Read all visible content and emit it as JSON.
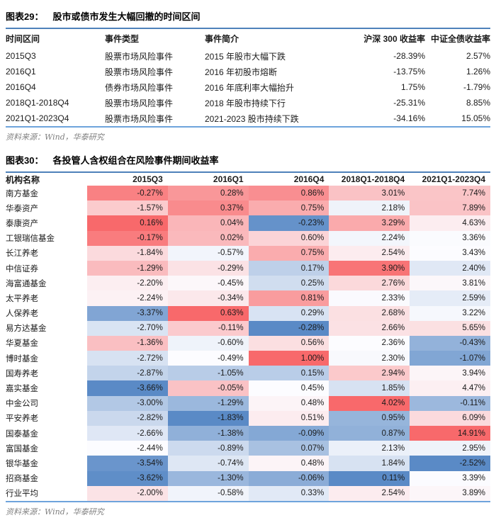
{
  "colors": {
    "heat_min": "#5A8AC6",
    "heat_mid": "#FCFCFF",
    "heat_max": "#F8696B",
    "title_rule": "#4E81BA",
    "bottom_rule": "#6EA4DC",
    "source_text": "#808080"
  },
  "figure29": {
    "label": "图表29：",
    "title": "股市或债市发生大幅回撤的时间区间",
    "columns": [
      "时间区间",
      "事件类型",
      "事件简介",
      "沪深 300 收益率",
      "中证全债收益率"
    ],
    "rows": [
      [
        "2015Q3",
        "股票市场风险事件",
        "2015 年股市大幅下跌",
        "-28.39%",
        "2.57%"
      ],
      [
        "2016Q1",
        "股票市场风险事件",
        "2016 年初股市熔断",
        "-13.75%",
        "1.26%"
      ],
      [
        "2016Q4",
        "债券市场风险事件",
        "2016 年底利率大幅抬升",
        "1.75%",
        "-1.79%"
      ],
      [
        "2018Q1-2018Q4",
        "股票市场风险事件",
        "2018 年股市持续下行",
        "-25.31%",
        "8.85%"
      ],
      [
        "2021Q1-2023Q4",
        "股票市场风险事件",
        "2021-2023 股市持续下跌",
        "-34.16%",
        "15.05%"
      ]
    ],
    "source": "资料来源：Wind，华泰研究"
  },
  "figure30": {
    "label": "图表30：",
    "title": "各投管人含权组合在风险事件期间收益率",
    "name_header": "机构名称",
    "period_headers": [
      "2015Q3",
      "2016Q1",
      "2016Q4",
      "2018Q1-2018Q4",
      "2021Q1-2023Q4"
    ],
    "rows": [
      {
        "name": "南方基金",
        "values": [
          -0.27,
          0.28,
          0.86,
          3.01,
          7.74
        ]
      },
      {
        "name": "华泰资产",
        "values": [
          -1.57,
          0.37,
          0.75,
          2.18,
          7.89
        ]
      },
      {
        "name": "泰康资产",
        "values": [
          0.16,
          0.04,
          -0.23,
          3.29,
          4.63
        ]
      },
      {
        "name": "工银瑞信基金",
        "values": [
          -0.17,
          0.02,
          0.6,
          2.24,
          3.36
        ]
      },
      {
        "name": "长江养老",
        "values": [
          -1.84,
          -0.57,
          0.75,
          2.54,
          3.43
        ]
      },
      {
        "name": "中信证券",
        "values": [
          -1.29,
          -0.29,
          0.17,
          3.9,
          2.4
        ]
      },
      {
        "name": "海富通基金",
        "values": [
          -2.2,
          -0.45,
          0.25,
          2.76,
          3.81
        ]
      },
      {
        "name": "太平养老",
        "values": [
          -2.24,
          -0.34,
          0.81,
          2.33,
          2.59
        ]
      },
      {
        "name": "人保养老",
        "values": [
          -3.37,
          0.63,
          0.29,
          2.68,
          3.22
        ]
      },
      {
        "name": "易方达基金",
        "values": [
          -2.7,
          -0.11,
          -0.28,
          2.66,
          5.65
        ]
      },
      {
        "name": "华夏基金",
        "values": [
          -1.36,
          -0.6,
          0.56,
          2.36,
          -0.43
        ]
      },
      {
        "name": "博时基金",
        "values": [
          -2.72,
          -0.49,
          1.0,
          2.3,
          -1.07
        ]
      },
      {
        "name": "国寿养老",
        "values": [
          -2.87,
          -1.05,
          0.15,
          2.94,
          3.94
        ]
      },
      {
        "name": "嘉实基金",
        "values": [
          -3.66,
          -0.05,
          0.45,
          1.85,
          4.47
        ]
      },
      {
        "name": "中金公司",
        "values": [
          -3.0,
          -1.29,
          0.48,
          4.02,
          -0.11
        ]
      },
      {
        "name": "平安养老",
        "values": [
          -2.82,
          -1.83,
          0.51,
          0.95,
          6.09
        ]
      },
      {
        "name": "国泰基金",
        "values": [
          -2.66,
          -1.38,
          -0.09,
          0.87,
          14.91
        ]
      },
      {
        "name": "富国基金",
        "values": [
          -2.44,
          -0.89,
          0.07,
          2.13,
          2.95
        ]
      },
      {
        "name": "银华基金",
        "values": [
          -3.54,
          -0.74,
          0.48,
          1.84,
          -2.52
        ]
      },
      {
        "name": "招商基金",
        "values": [
          -3.62,
          -1.3,
          -0.06,
          0.11,
          3.39
        ]
      },
      {
        "name": "行业平均",
        "values": [
          -2.0,
          -0.58,
          0.33,
          2.54,
          3.89
        ]
      }
    ],
    "source": "资料来源：Wind，华泰研究"
  }
}
